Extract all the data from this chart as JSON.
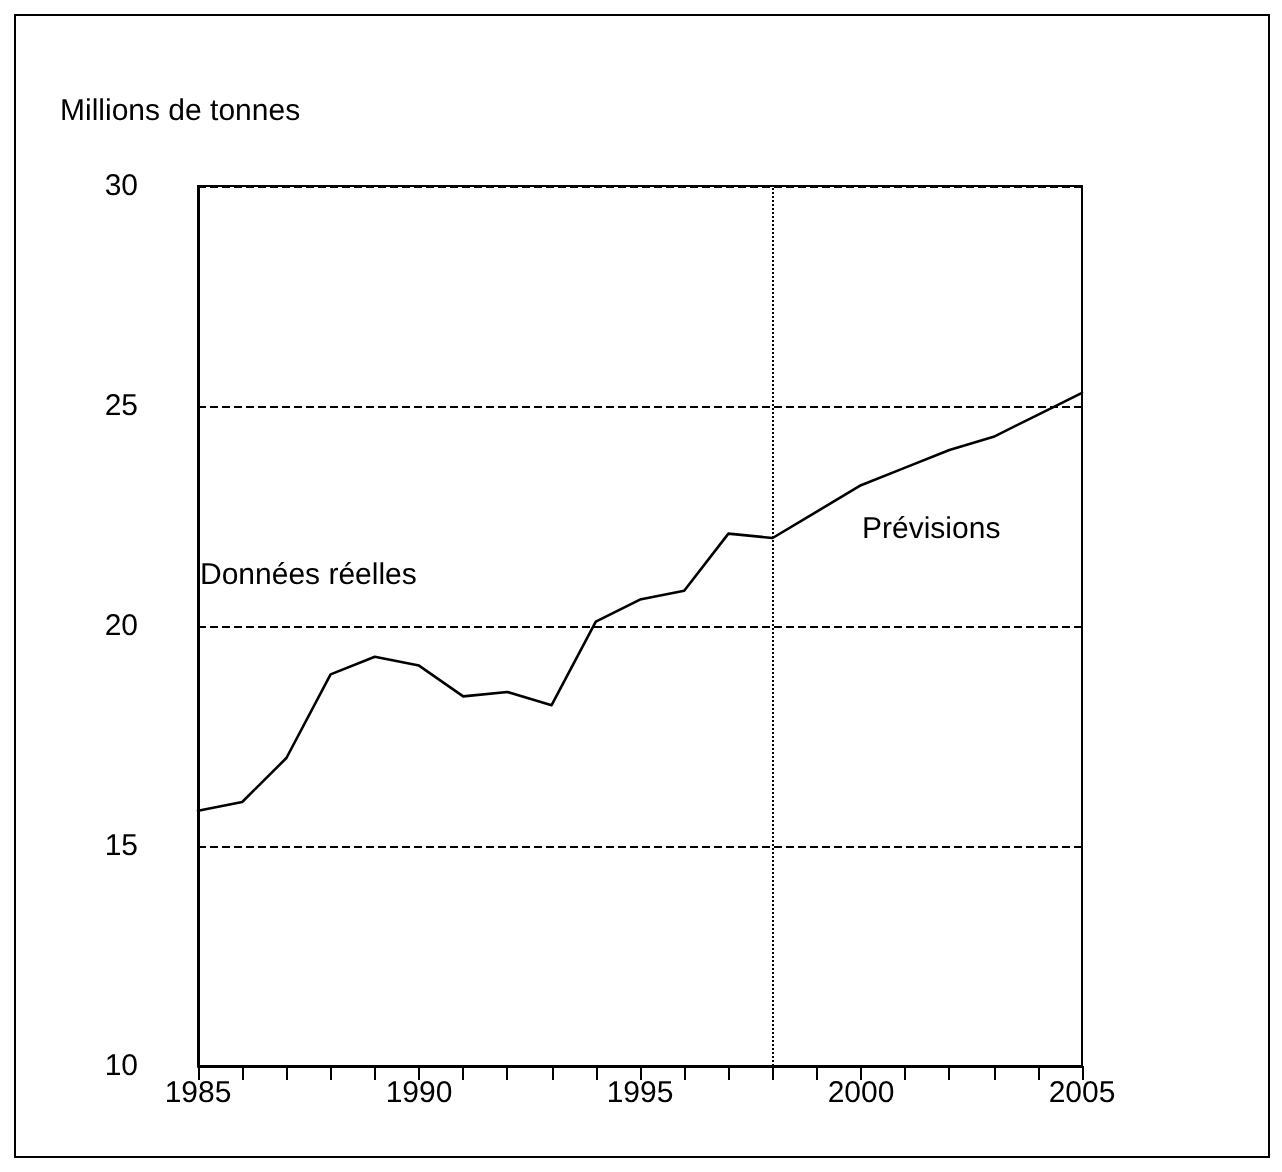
{
  "chart_data": {
    "type": "line",
    "ylabel": "Millions de tonnes",
    "x": [
      1985,
      1986,
      1987,
      1988,
      1989,
      1990,
      1991,
      1992,
      1993,
      1994,
      1995,
      1996,
      1997,
      1998,
      1999,
      2000,
      2001,
      2002,
      2003,
      2004,
      2005
    ],
    "series": [
      {
        "color": "#000000",
        "values": [
          15.8,
          16.0,
          17.0,
          18.9,
          19.3,
          19.1,
          18.4,
          18.5,
          18.2,
          20.1,
          20.6,
          20.8,
          22.1,
          22.0,
          22.6,
          23.2,
          23.6,
          24.0,
          24.3,
          24.8,
          25.3
        ]
      }
    ],
    "xlim": [
      1985,
      2005
    ],
    "xticks": [
      1985,
      {
        "value": 1986,
        "label": null
      },
      {
        "value": 1987,
        "label": null
      },
      {
        "value": 1988,
        "label": null
      },
      {
        "value": 1989,
        "label": null
      },
      1990,
      {
        "value": 1991,
        "label": null
      },
      {
        "value": 1992,
        "label": null
      },
      {
        "value": 1993,
        "label": null
      },
      {
        "value": 1994,
        "label": null
      },
      1995,
      {
        "value": 1996,
        "label": null
      },
      {
        "value": 1997,
        "label": null
      },
      {
        "value": 1998,
        "label": null
      },
      {
        "value": 1999,
        "label": null
      },
      2000,
      {
        "value": 2001,
        "label": null
      },
      {
        "value": 2002,
        "label": null
      },
      {
        "value": 2003,
        "label": null
      },
      {
        "value": 2004,
        "label": null
      },
      2005
    ],
    "ylim": [
      10,
      30
    ],
    "yticks": [
      10,
      15,
      20,
      25,
      30
    ],
    "grid": "y",
    "marker": "none",
    "line_style": "solid",
    "ref_lines": [
      {
        "axis": "x",
        "value": 1998,
        "line_style": "dotted"
      }
    ],
    "annotations": [
      "Données réelles",
      "Prévisions"
    ]
  }
}
